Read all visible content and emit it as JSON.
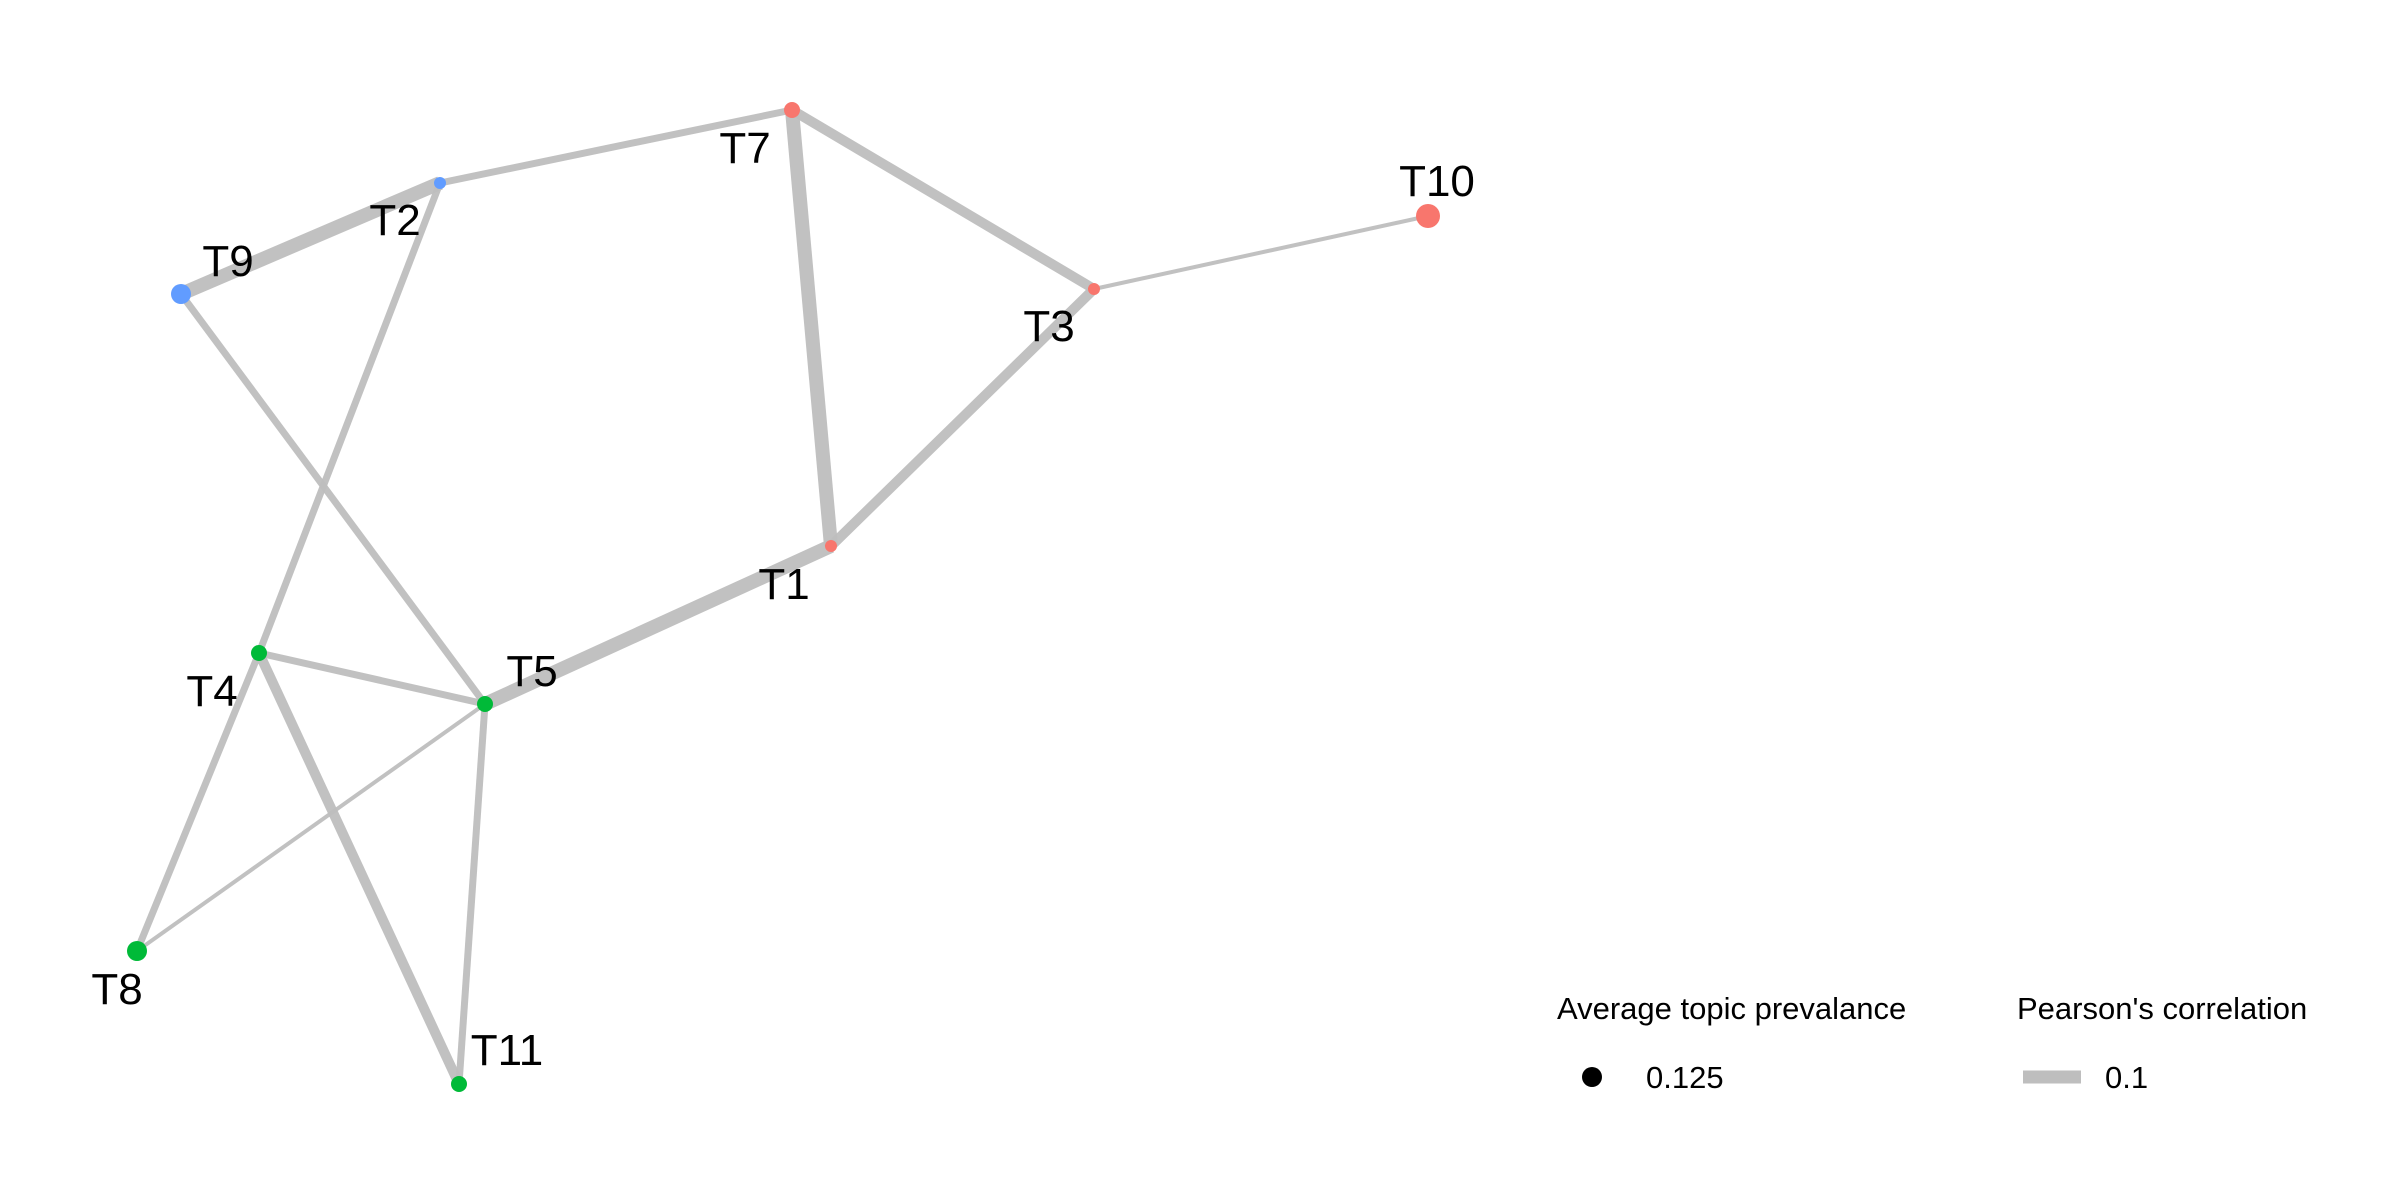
{
  "network": {
    "colors": {
      "edge": "#bebebe",
      "group_red": "#f8766d",
      "group_green": "#00ba38",
      "group_blue": "#619cff"
    },
    "nodes": [
      {
        "id": "T1",
        "label": "T1",
        "group": "red",
        "size": 1
      },
      {
        "id": "T2",
        "label": "T2",
        "group": "blue",
        "size": 1
      },
      {
        "id": "T3",
        "label": "T3",
        "group": "red",
        "size": 1
      },
      {
        "id": "T4",
        "label": "T4",
        "group": "green",
        "size": 2
      },
      {
        "id": "T5",
        "label": "T5",
        "group": "green",
        "size": 2
      },
      {
        "id": "T7",
        "label": "T7",
        "group": "red",
        "size": 2
      },
      {
        "id": "T8",
        "label": "T8",
        "group": "green",
        "size": 3
      },
      {
        "id": "T9",
        "label": "T9",
        "group": "blue",
        "size": 3
      },
      {
        "id": "T10",
        "label": "T10",
        "group": "red",
        "size": 4
      },
      {
        "id": "T11",
        "label": "T11",
        "group": "green",
        "size": 2
      }
    ],
    "edges": [
      {
        "source": "T9",
        "target": "T2",
        "strength": 4
      },
      {
        "source": "T2",
        "target": "T7",
        "strength": 2
      },
      {
        "source": "T7",
        "target": "T3",
        "strength": 3
      },
      {
        "source": "T7",
        "target": "T1",
        "strength": 4
      },
      {
        "source": "T3",
        "target": "T10",
        "strength": 1
      },
      {
        "source": "T3",
        "target": "T1",
        "strength": 3
      },
      {
        "source": "T1",
        "target": "T5",
        "strength": 4
      },
      {
        "source": "T9",
        "target": "T5",
        "strength": 2
      },
      {
        "source": "T2",
        "target": "T4",
        "strength": 2
      },
      {
        "source": "T4",
        "target": "T5",
        "strength": 2
      },
      {
        "source": "T4",
        "target": "T8",
        "strength": 2
      },
      {
        "source": "T4",
        "target": "T11",
        "strength": 3
      },
      {
        "source": "T5",
        "target": "T8",
        "strength": 1
      },
      {
        "source": "T5",
        "target": "T11",
        "strength": 2
      }
    ]
  },
  "legend": {
    "size_title": "Average topic prevalance",
    "size_value": "0.125",
    "size_color": "#000000",
    "width_title": "Pearson's correlation",
    "width_value": "0.1",
    "width_color": "#bebebe"
  }
}
